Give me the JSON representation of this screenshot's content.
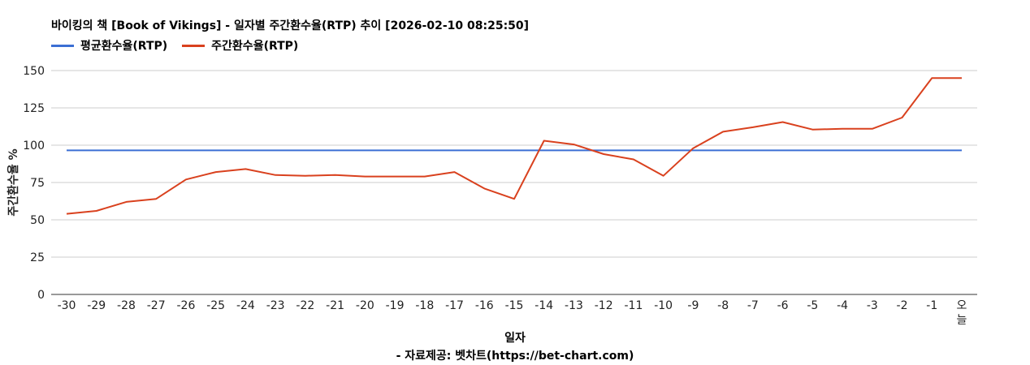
{
  "header": {
    "title": "바이킹의 책 [Book of Vikings] - 일자별 주간환수율(RTP) 추이 [2026-02-10 08:25:50]"
  },
  "footer": {
    "source": "- 자료제공: 벳차트(https://bet-chart.com)"
  },
  "chart_data": {
    "type": "line",
    "title": "바이킹의 책 [Book of Vikings] - 일자별 주간환수율(RTP) 추이 [2026-02-10 08:25:50]",
    "xlabel": "일자",
    "ylabel": "주간환수율 %",
    "ylim": [
      0,
      150
    ],
    "yticks": [
      0,
      25,
      50,
      75,
      100,
      125,
      150
    ],
    "grid": true,
    "legend_position": "top-left",
    "categories": [
      "-30",
      "-29",
      "-28",
      "-27",
      "-26",
      "-25",
      "-24",
      "-23",
      "-22",
      "-21",
      "-20",
      "-19",
      "-18",
      "-17",
      "-16",
      "-15",
      "-14",
      "-13",
      "-12",
      "-11",
      "-10",
      "-9",
      "-8",
      "-7",
      "-6",
      "-5",
      "-4",
      "-3",
      "-2",
      "-1",
      "오늘"
    ],
    "series": [
      {
        "name": "평균환수율(RTP)",
        "color": "#3b6fd4",
        "values": [
          96.5,
          96.5,
          96.5,
          96.5,
          96.5,
          96.5,
          96.5,
          96.5,
          96.5,
          96.5,
          96.5,
          96.5,
          96.5,
          96.5,
          96.5,
          96.5,
          96.5,
          96.5,
          96.5,
          96.5,
          96.5,
          96.5,
          96.5,
          96.5,
          96.5,
          96.5,
          96.5,
          96.5,
          96.5,
          96.5,
          96.5
        ]
      },
      {
        "name": "주간환수율(RTP)",
        "color": "#d9411e",
        "values": [
          54,
          56,
          62,
          64,
          77,
          82,
          84,
          80,
          79.5,
          80,
          79,
          79,
          79,
          82,
          71,
          64,
          103,
          100.5,
          94,
          90.5,
          79.5,
          98,
          109,
          112,
          115.5,
          110.5,
          111,
          111,
          118.5,
          145,
          145
        ]
      }
    ]
  }
}
